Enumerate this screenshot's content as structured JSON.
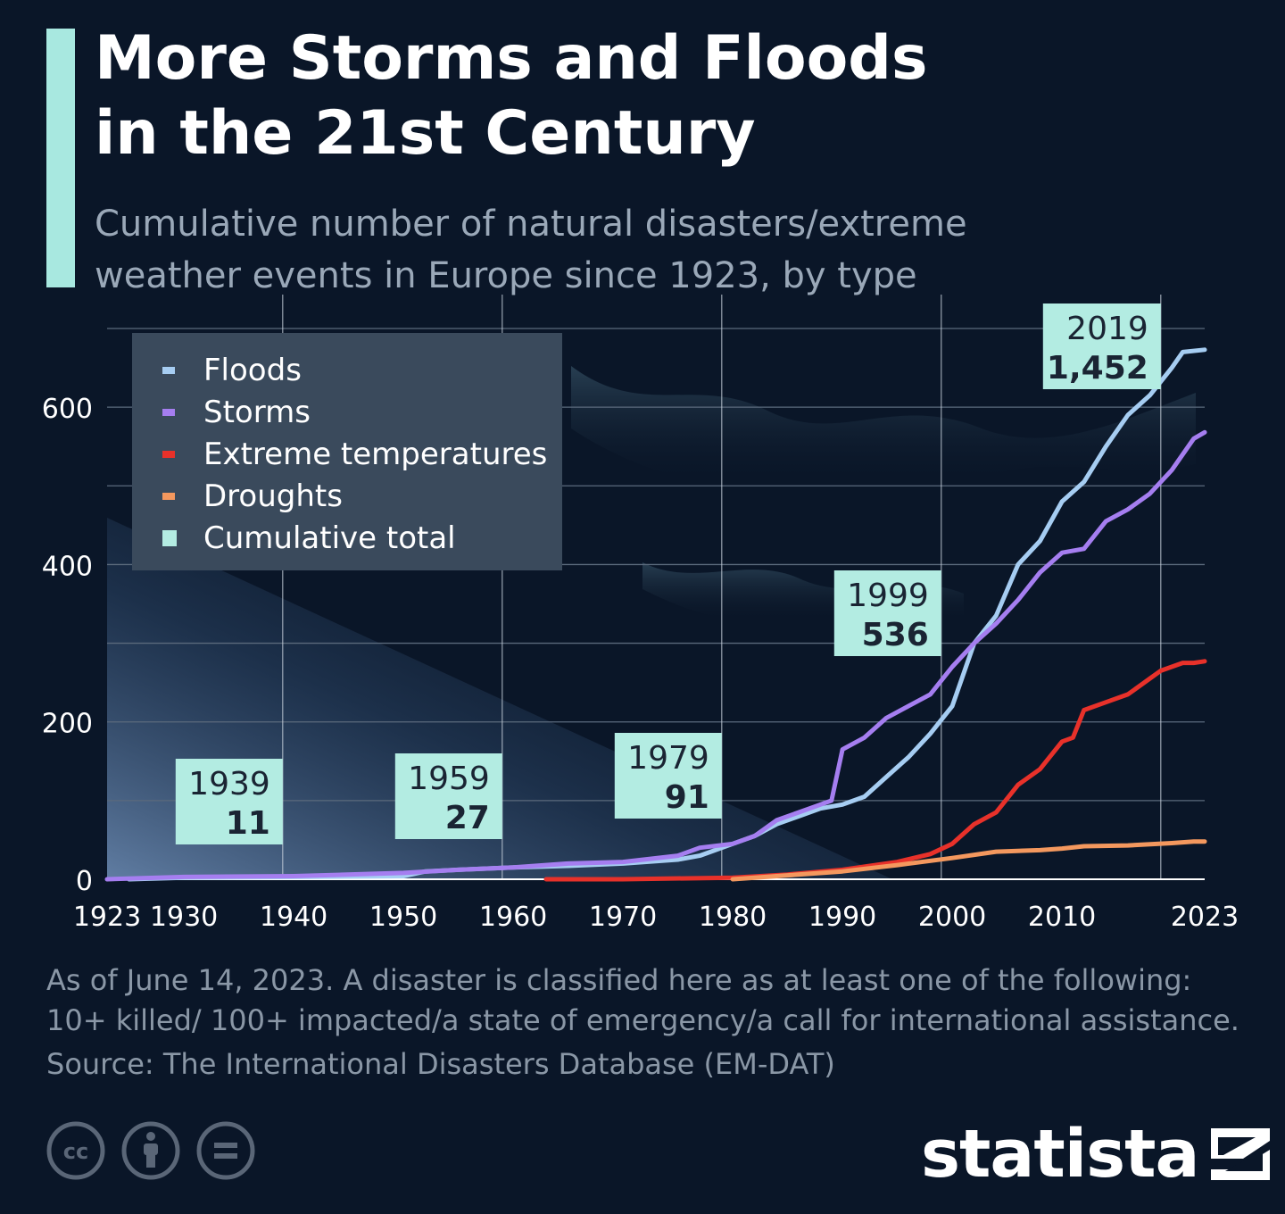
{
  "header": {
    "title_line1": "More Storms and Floods",
    "title_line2": "in the 21st Century",
    "subtitle_line1": "Cumulative number of natural disasters/extreme",
    "subtitle_line2": "weather events in Europe since 1923, by type",
    "accent_color": "#a8e8e0"
  },
  "footer": {
    "note_line1": "As of June 14, 2023. A disaster is classified here as at least one of the following:",
    "note_line2": "10+ killed/ 100+ impacted/a state of emergency/a call for international assistance.",
    "source": "Source: The International Disasters Database (EM-DAT)",
    "brand": "statista",
    "license_icons": [
      "cc-icon",
      "attribution-icon",
      "no-derivatives-icon"
    ]
  },
  "chart_data": {
    "type": "line",
    "xlim": [
      1923,
      2023
    ],
    "ylim": [
      0,
      700
    ],
    "grid": true,
    "legend_position": "top-left",
    "x_ticks": [
      {
        "value": 1923,
        "label": "1923"
      },
      {
        "value": 1930,
        "label": "1930"
      },
      {
        "value": 1940,
        "label": "1940"
      },
      {
        "value": 1950,
        "label": "1950"
      },
      {
        "value": 1960,
        "label": "1960"
      },
      {
        "value": 1970,
        "label": "1970"
      },
      {
        "value": 1980,
        "label": "1980"
      },
      {
        "value": 1990,
        "label": "1990"
      },
      {
        "value": 2000,
        "label": "2000"
      },
      {
        "value": 2010,
        "label": "2010"
      },
      {
        "value": 2023,
        "label": "2023"
      }
    ],
    "y_ticks": [
      {
        "value": 0,
        "label": "0"
      },
      {
        "value": 200,
        "label": "200"
      },
      {
        "value": 400,
        "label": "400"
      },
      {
        "value": 600,
        "label": "600"
      }
    ],
    "series": [
      {
        "name": "Floods",
        "color": "#a6cdf2",
        "x": [
          1925,
          1930,
          1940,
          1950,
          1952,
          1955,
          1960,
          1965,
          1970,
          1975,
          1977,
          1980,
          1982,
          1984,
          1986,
          1988,
          1990,
          1992,
          1994,
          1996,
          1998,
          2000,
          2002,
          2004,
          2006,
          2008,
          2010,
          2012,
          2014,
          2016,
          2018,
          2020,
          2021,
          2023
        ],
        "y": [
          0,
          2,
          3,
          4,
          10,
          12,
          15,
          17,
          20,
          25,
          30,
          45,
          55,
          70,
          80,
          90,
          95,
          105,
          130,
          155,
          185,
          220,
          300,
          335,
          400,
          430,
          480,
          505,
          550,
          590,
          615,
          650,
          670,
          673
        ]
      },
      {
        "name": "Storms",
        "color": "#a57ef0",
        "x": [
          1923,
          1930,
          1940,
          1950,
          1955,
          1960,
          1965,
          1970,
          1975,
          1977,
          1980,
          1982,
          1984,
          1986,
          1988,
          1989,
          1990,
          1992,
          1994,
          1996,
          1998,
          2000,
          2002,
          2004,
          2006,
          2008,
          2010,
          2012,
          2014,
          2016,
          2018,
          2020,
          2022,
          2023
        ],
        "y": [
          0,
          3,
          4,
          8,
          12,
          15,
          20,
          22,
          30,
          40,
          45,
          55,
          75,
          85,
          95,
          100,
          165,
          180,
          205,
          220,
          235,
          270,
          300,
          325,
          355,
          390,
          415,
          420,
          455,
          470,
          490,
          520,
          560,
          568
        ]
      },
      {
        "name": "Extreme temperatures",
        "color": "#e8312a",
        "x": [
          1963,
          1970,
          1980,
          1985,
          1990,
          1995,
          1998,
          2000,
          2002,
          2004,
          2006,
          2008,
          2010,
          2011,
          2012,
          2014,
          2016,
          2018,
          2019,
          2020,
          2021,
          2022,
          2023
        ],
        "y": [
          0,
          0,
          2,
          6,
          12,
          22,
          32,
          45,
          70,
          85,
          120,
          140,
          175,
          180,
          215,
          225,
          235,
          255,
          265,
          270,
          275,
          275,
          277
        ]
      },
      {
        "name": "Droughts",
        "color": "#f4985e",
        "x": [
          1980,
          1985,
          1990,
          1995,
          2000,
          2004,
          2008,
          2010,
          2012,
          2016,
          2020,
          2022,
          2023
        ],
        "y": [
          0,
          5,
          10,
          18,
          27,
          35,
          37,
          39,
          42,
          43,
          46,
          48,
          48
        ]
      }
    ],
    "annotations": [
      {
        "year": "1939",
        "value": "11",
        "x": 1939
      },
      {
        "year": "1959",
        "value": "27",
        "x": 1959
      },
      {
        "year": "1979",
        "value": "91",
        "x": 1979
      },
      {
        "year": "1999",
        "value": "536",
        "x": 1999
      },
      {
        "year": "2019",
        "value": "1,452",
        "x": 2019
      }
    ],
    "cumulative_total_label": "Cumulative total",
    "cumulative_total_color": "#b3ece2"
  }
}
